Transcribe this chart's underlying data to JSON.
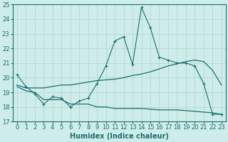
{
  "xlabel": "Humidex (Indice chaleur)",
  "background_color": "#ceecea",
  "grid_color": "#aed4d0",
  "line_color": "#1a6e6a",
  "x_values": [
    0,
    1,
    2,
    3,
    4,
    5,
    6,
    7,
    8,
    9,
    10,
    11,
    12,
    13,
    14,
    15,
    16,
    17,
    18,
    19,
    20,
    21,
    22,
    23
  ],
  "line1_y": [
    20.2,
    19.4,
    18.9,
    18.2,
    18.7,
    18.6,
    18.0,
    18.4,
    18.6,
    19.6,
    20.8,
    22.5,
    22.8,
    20.9,
    24.8,
    23.4,
    21.4,
    21.2,
    21.0,
    21.0,
    20.8,
    19.6,
    17.5,
    17.5
  ],
  "line2_y": [
    19.5,
    19.3,
    19.3,
    19.3,
    19.4,
    19.5,
    19.5,
    19.6,
    19.7,
    19.8,
    19.85,
    19.9,
    20.0,
    20.15,
    20.25,
    20.4,
    20.6,
    20.8,
    20.95,
    21.1,
    21.2,
    21.1,
    20.5,
    19.5
  ],
  "line3_y": [
    19.4,
    19.1,
    19.0,
    18.5,
    18.5,
    18.5,
    18.2,
    18.2,
    18.2,
    18.0,
    18.0,
    17.9,
    17.9,
    17.9,
    17.9,
    17.85,
    17.8,
    17.8,
    17.8,
    17.75,
    17.7,
    17.65,
    17.6,
    17.5
  ],
  "ylim": [
    17,
    25
  ],
  "xlim": [
    -0.5,
    23.5
  ],
  "yticks": [
    17,
    18,
    19,
    20,
    21,
    22,
    23,
    24,
    25
  ],
  "xtick_labels": [
    "0",
    "1",
    "2",
    "3",
    "4",
    "5",
    "6",
    "7",
    "8",
    "9",
    "10",
    "11",
    "12",
    "13",
    "14",
    "15",
    "16",
    "17",
    "18",
    "19",
    "20",
    "21",
    "22",
    "23"
  ],
  "tick_fontsize": 6.0,
  "xlabel_fontsize": 7.0
}
